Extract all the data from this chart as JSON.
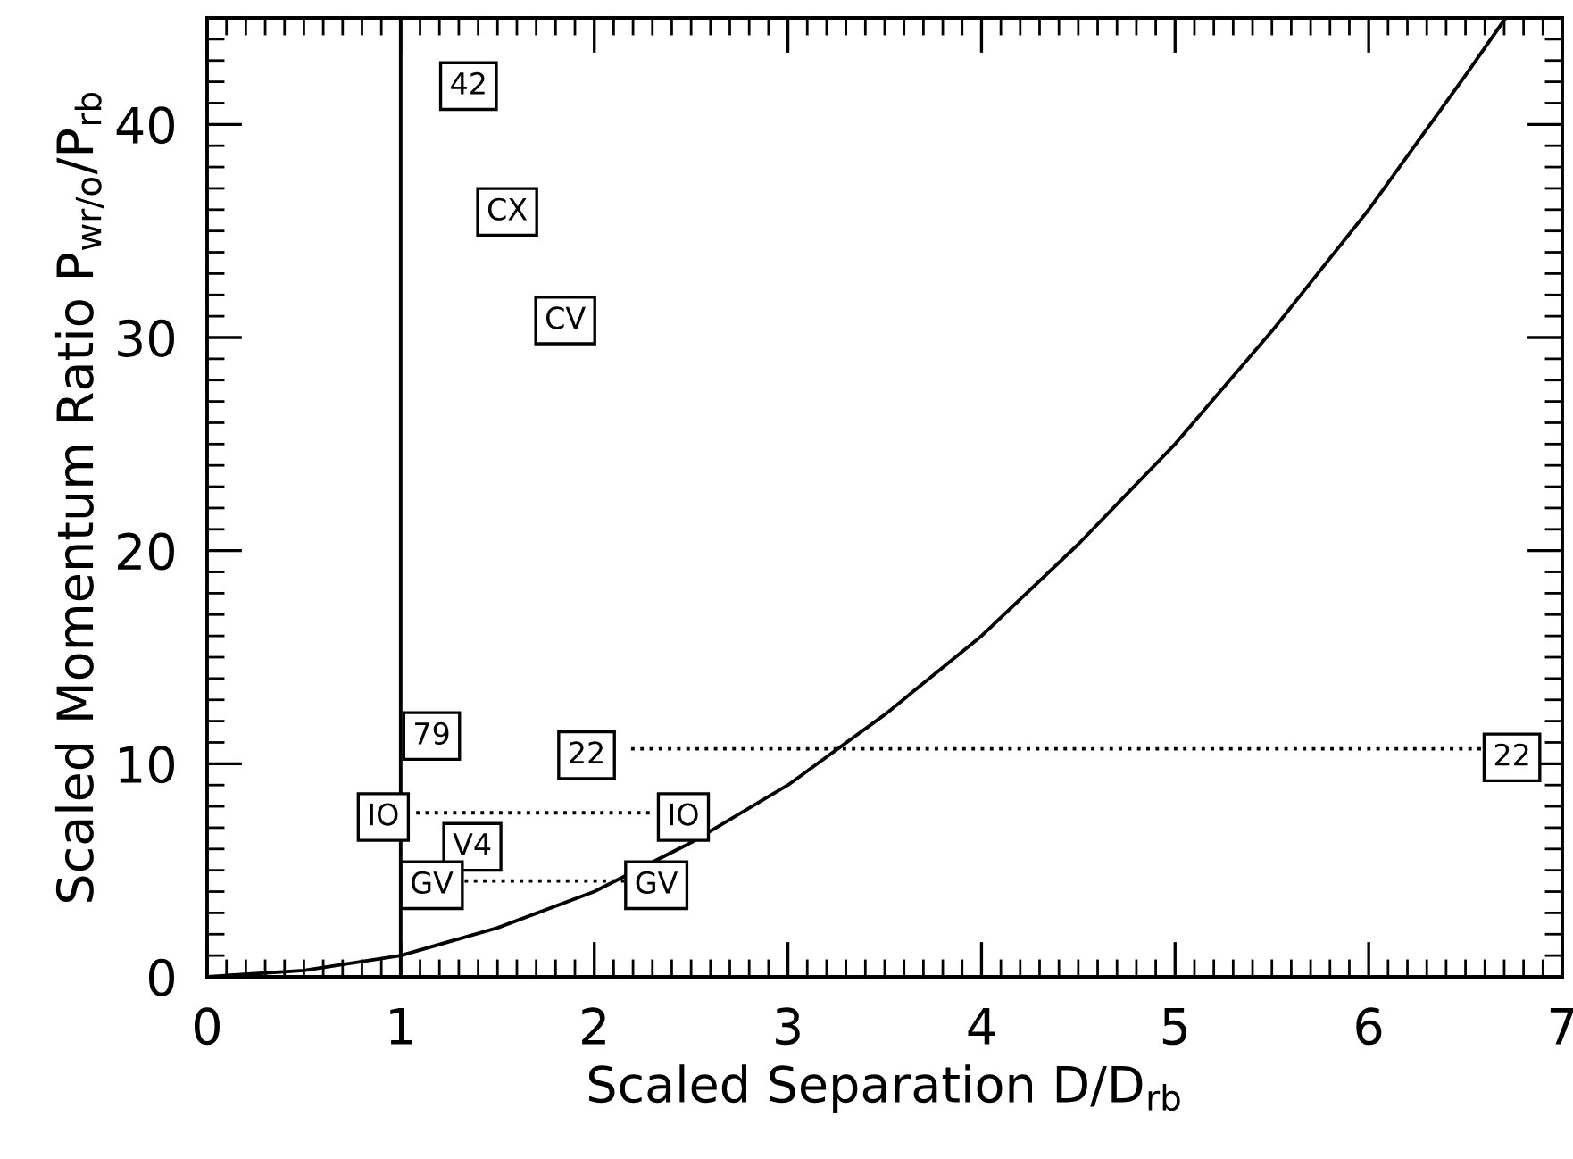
{
  "chart_data": {
    "type": "line",
    "xlabel": "Scaled Separation D/D$_{rb}$",
    "ylabel": "Scaled Momentum Ratio P$_{wr/o}$/P$_{rb}$",
    "xlim": [
      0,
      7
    ],
    "ylim": [
      0,
      45
    ],
    "xticks": [
      0,
      1,
      2,
      3,
      4,
      5,
      6,
      7
    ],
    "yticks": [
      0,
      10,
      20,
      30,
      40
    ],
    "grid": false,
    "legend": false,
    "series": [
      {
        "color": "#000000",
        "line_style": "solid",
        "x": [
          0,
          0.5,
          1,
          1.5,
          2,
          2.5,
          3,
          3.5,
          4,
          4.5,
          5,
          5.5,
          6,
          6.5,
          6.7
        ],
        "values": [
          0,
          0.3,
          1,
          2.3,
          4,
          6.3,
          9,
          12.3,
          16,
          20.3,
          25,
          30.3,
          36,
          42.3,
          44.9
        ]
      },
      {
        "color": "#000000",
        "line_style": "dotted",
        "x": [
          2.19,
          6.58
        ],
        "values": [
          10.7,
          10.7
        ]
      },
      {
        "color": "#000000",
        "line_style": "dotted",
        "x": [
          1.08,
          2.31
        ],
        "values": [
          7.7,
          7.7
        ]
      },
      {
        "color": "#000000",
        "line_style": "dotted",
        "x": [
          1.33,
          2.16
        ],
        "values": [
          4.5,
          4.5
        ]
      }
    ],
    "ref_lines": [
      {
        "axis": "x",
        "value": 1,
        "color": "#000000",
        "line_style": "solid"
      }
    ],
    "annotations": [
      {
        "text": "42",
        "x": 1.35,
        "y": 41.8
      },
      {
        "text": "CX",
        "x": 1.55,
        "y": 35.9
      },
      {
        "text": "CV",
        "x": 1.85,
        "y": 30.8
      },
      {
        "text": "79",
        "x": 1.16,
        "y": 11.3
      },
      {
        "text": "22",
        "x": 1.96,
        "y": 10.4
      },
      {
        "text": "22",
        "x": 6.74,
        "y": 10.3
      },
      {
        "text": "IO",
        "x": 0.91,
        "y": 7.5
      },
      {
        "text": "IO",
        "x": 2.46,
        "y": 7.5
      },
      {
        "text": "V4",
        "x": 1.37,
        "y": 6.1
      },
      {
        "text": "GV",
        "x": 1.16,
        "y": 4.3
      },
      {
        "text": "GV",
        "x": 2.32,
        "y": 4.3
      }
    ]
  }
}
